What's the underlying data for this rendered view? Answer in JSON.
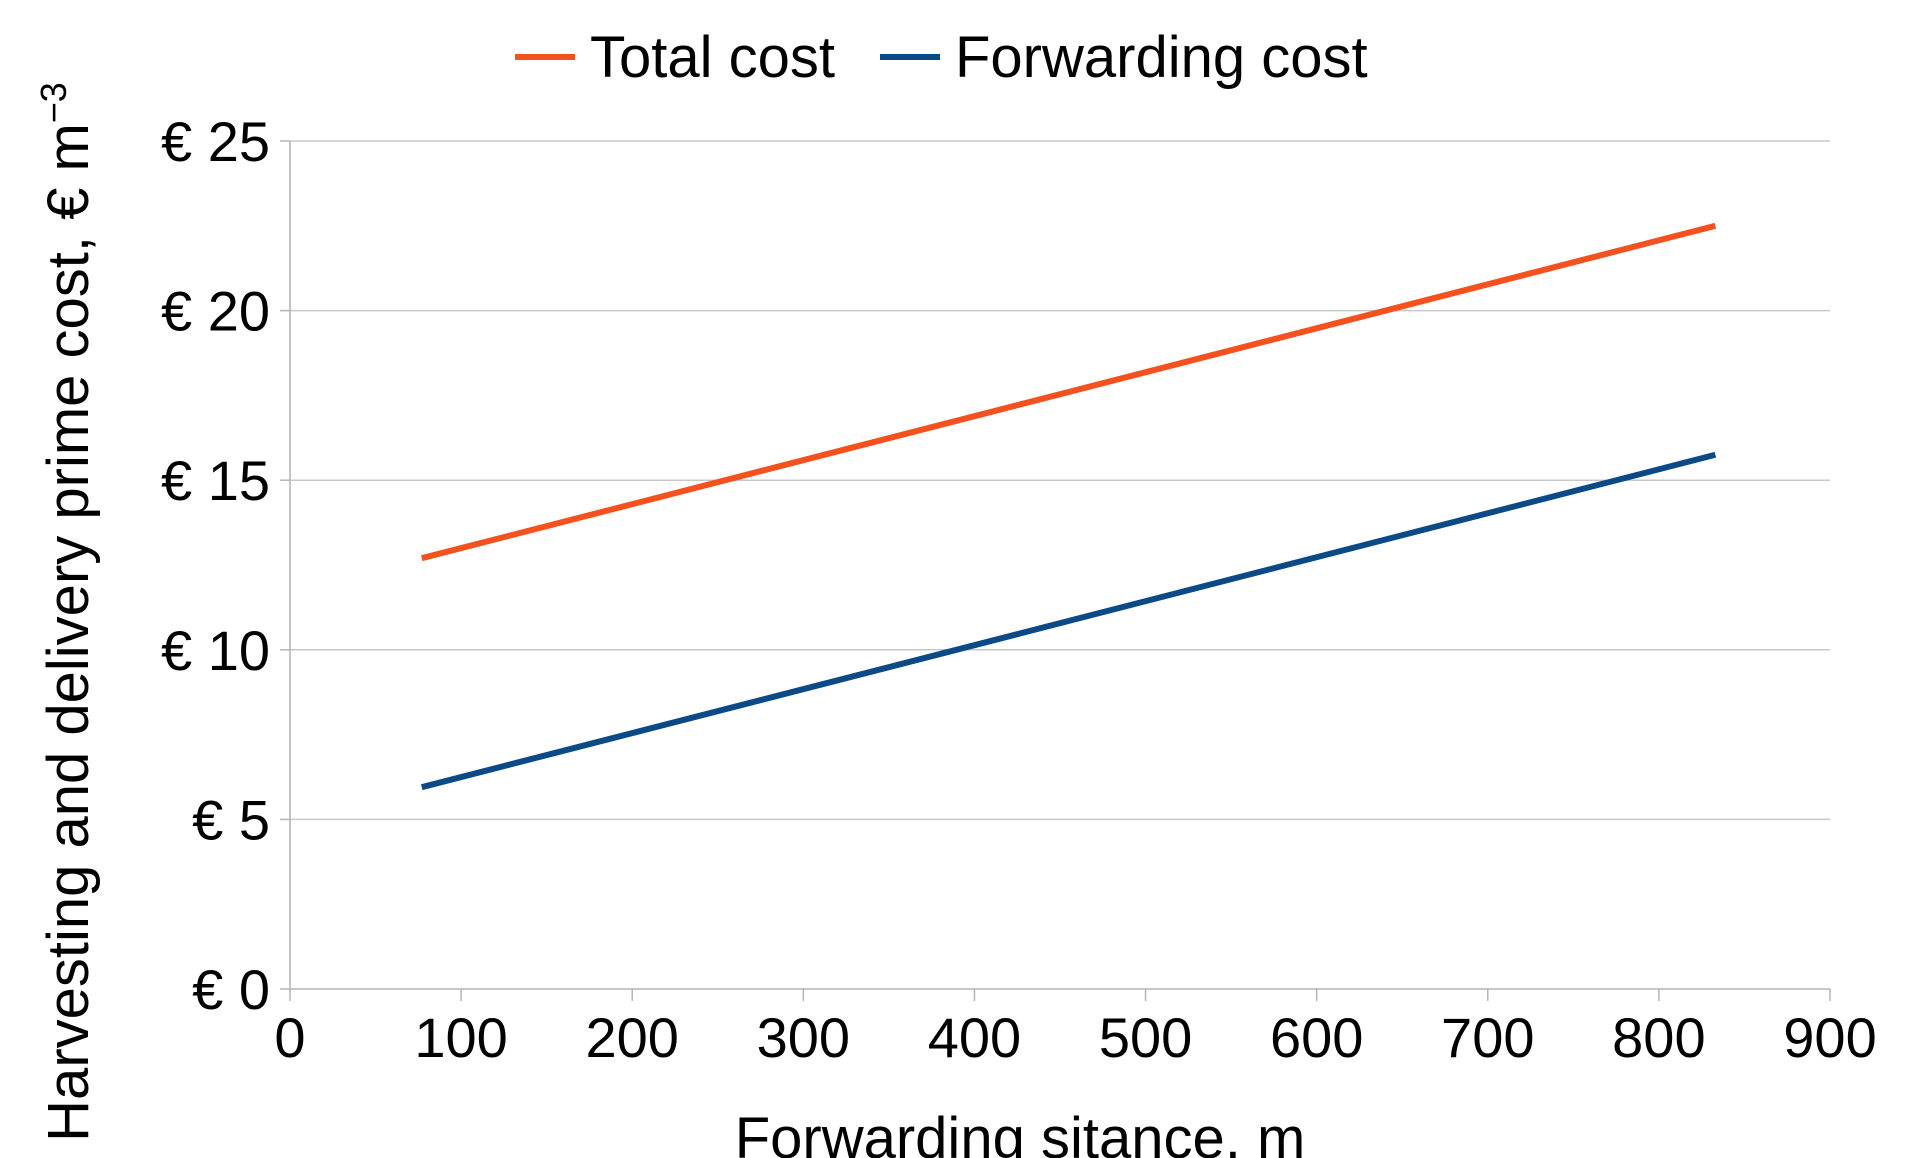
{
  "chart_data": {
    "type": "line",
    "title": "",
    "xlabel": "Forwarding sitance, m",
    "ylabel": "Harvesting and delivery prime cost, € m",
    "ylabel_superscript": "−3",
    "xlim": [
      0,
      900
    ],
    "ylim": [
      0,
      25
    ],
    "x_ticks": [
      0,
      100,
      200,
      300,
      400,
      500,
      600,
      700,
      800,
      900
    ],
    "x_tick_labels": [
      "0",
      "100",
      "200",
      "300",
      "400",
      "500",
      "600",
      "700",
      "800",
      "900"
    ],
    "y_ticks": [
      0,
      5,
      10,
      15,
      20,
      25
    ],
    "y_tick_labels": [
      "€ 0",
      "€ 5",
      "€ 10",
      "€ 15",
      "€ 20",
      "€ 25"
    ],
    "grid": "horizontal",
    "legend_position": "top",
    "series": [
      {
        "name": "Total cost",
        "color": "#f4511e",
        "x": [
          77,
          833
        ],
        "y": [
          12.7,
          22.5
        ]
      },
      {
        "name": "Forwarding cost",
        "color": "#0b4a86",
        "x": [
          77,
          833
        ],
        "y": [
          5.95,
          15.75
        ]
      }
    ]
  }
}
